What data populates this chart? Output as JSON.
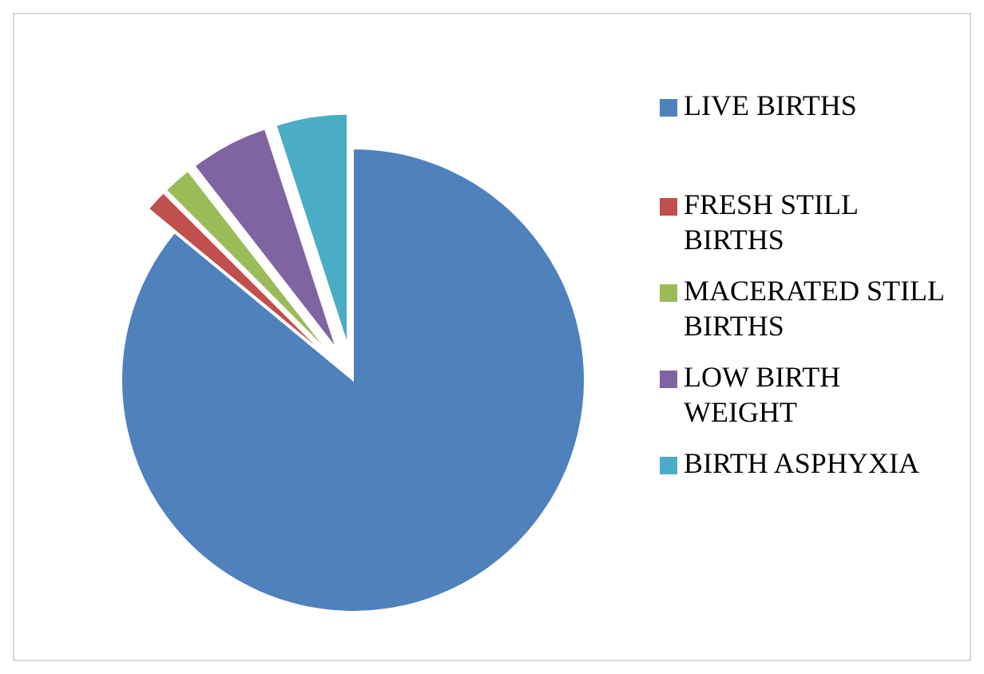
{
  "chart_data": {
    "type": "pie",
    "categories": [
      "LIVE BIRTHS",
      "FRESH STILL BIRTHS",
      "MACERATED STILL BIRTHS",
      "LOW BIRTH WEIGHT",
      "BIRTH ASPHYXIA"
    ],
    "values": [
      86,
      1.5,
      2,
      5.5,
      5
    ],
    "colors": [
      "#4f81bd",
      "#c0504d",
      "#9bbb59",
      "#8064a2",
      "#4bacc6"
    ],
    "legend": "right"
  }
}
